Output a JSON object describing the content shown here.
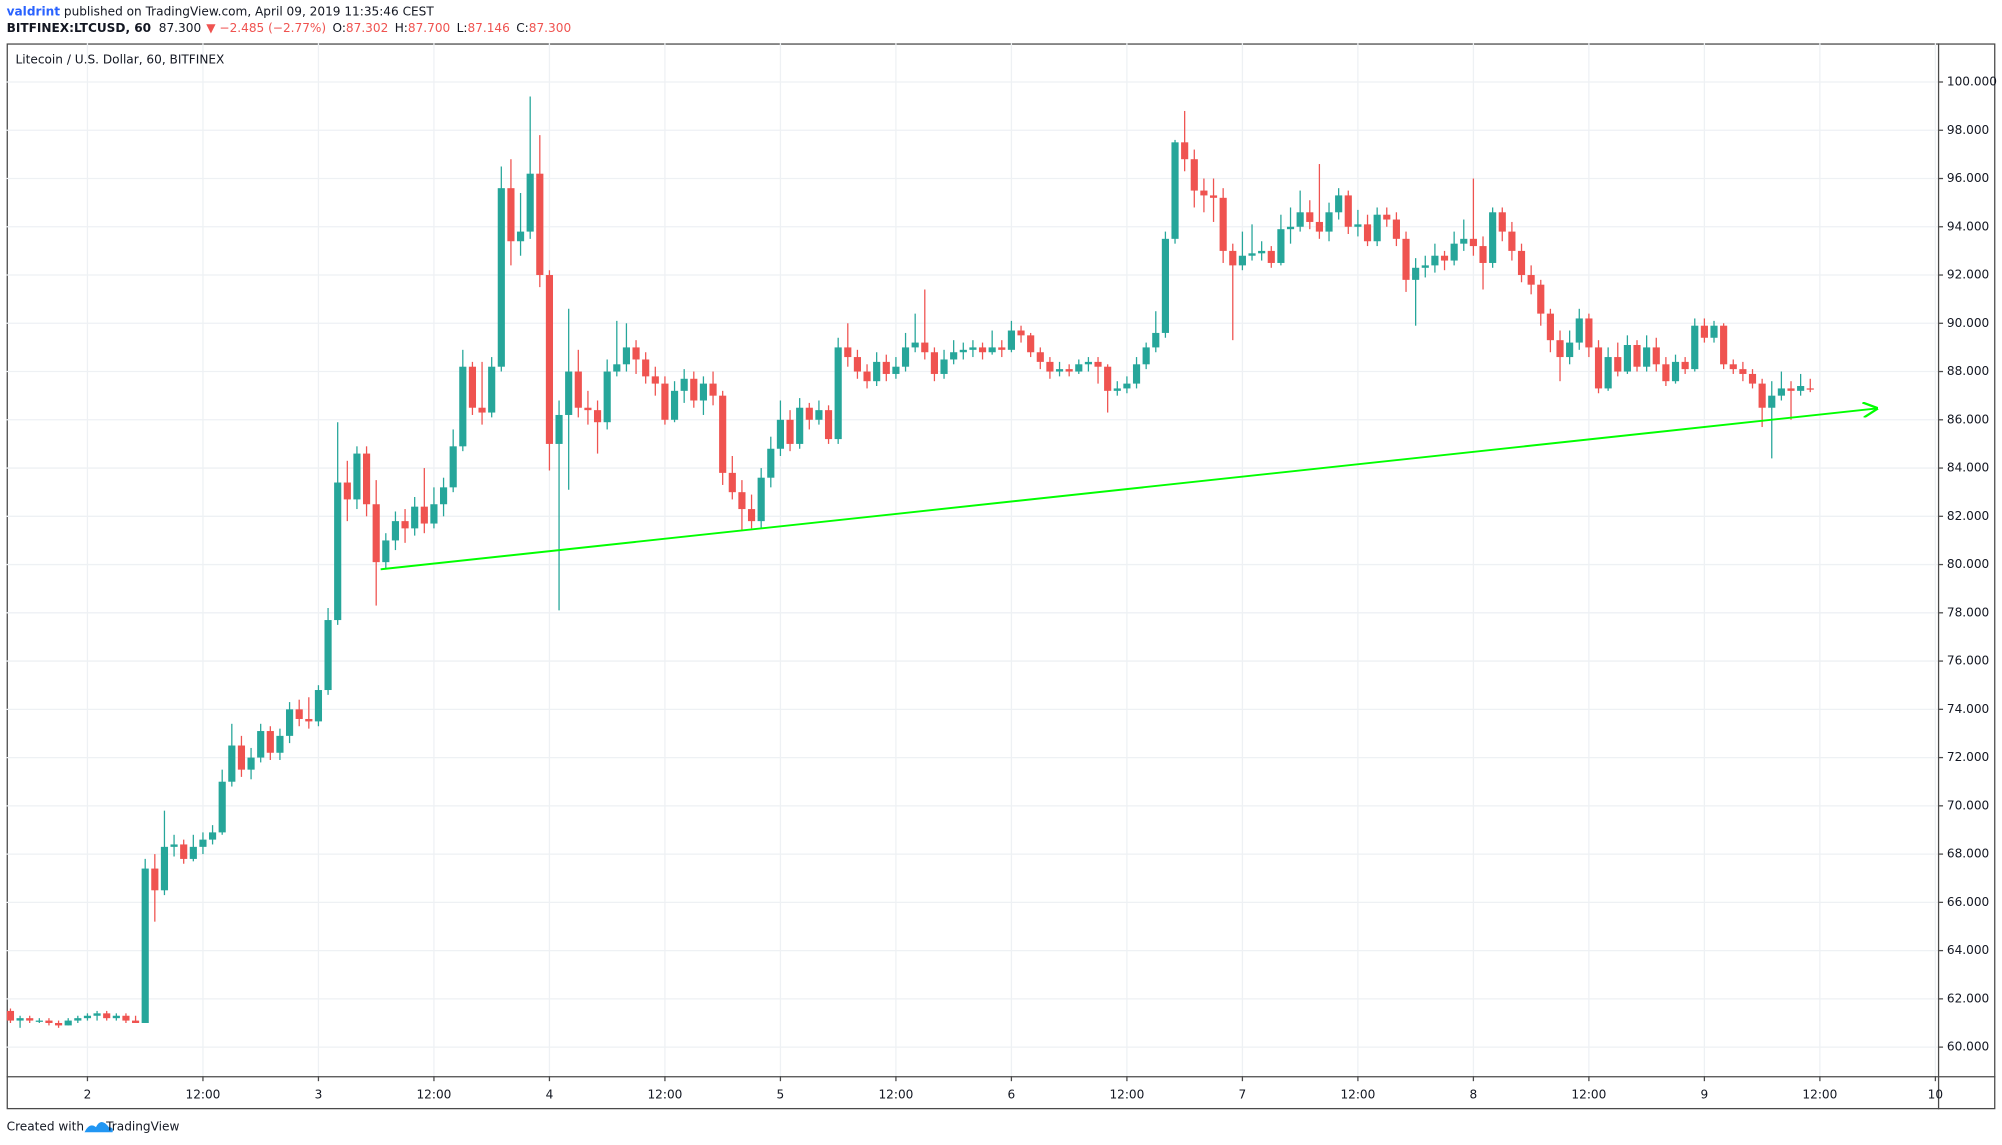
{
  "header": {
    "author": "valdrint",
    "published": " published on TradingView.com, April 09, 2019 11:35:46 CEST",
    "symbol": "BITFINEX:LTCUSD, 60",
    "last": "87.300",
    "change": "▼ −2.485 (−2.77%)",
    "ohlc": [
      {
        "label": "O:",
        "value": "87.302"
      },
      {
        "label": "H:",
        "value": "87.700"
      },
      {
        "label": "L:",
        "value": "87.146"
      },
      {
        "label": "C:",
        "value": "87.300"
      }
    ]
  },
  "chart_data": {
    "type": "candlestick",
    "title": "Litecoin / U.S. Dollar, 60, BITFINEX",
    "up_color": "#26a69a",
    "down_color": "#ef5350",
    "grid": true,
    "ylim": [
      58.8,
      101.6
    ],
    "yticks": [
      {
        "value": 60,
        "label": "60.000"
      },
      {
        "value": 62,
        "label": "62.000"
      },
      {
        "value": 64,
        "label": "64.000"
      },
      {
        "value": 66,
        "label": "66.000"
      },
      {
        "value": 68,
        "label": "68.000"
      },
      {
        "value": 70,
        "label": "70.000"
      },
      {
        "value": 72,
        "label": "72.000"
      },
      {
        "value": 74,
        "label": "74.000"
      },
      {
        "value": 76,
        "label": "76.000"
      },
      {
        "value": 78,
        "label": "78.000"
      },
      {
        "value": 80,
        "label": "80.000"
      },
      {
        "value": 82,
        "label": "82.000"
      },
      {
        "value": 84,
        "label": "84.000"
      },
      {
        "value": 86,
        "label": "86.000"
      },
      {
        "value": 88,
        "label": "88.000"
      },
      {
        "value": 90,
        "label": "90.000"
      },
      {
        "value": 92,
        "label": "92.000"
      },
      {
        "value": 94,
        "label": "94.000"
      },
      {
        "value": 96,
        "label": "96.000"
      },
      {
        "value": 98,
        "label": "98.000"
      },
      {
        "value": 100,
        "label": "100.000"
      }
    ],
    "xtick_labels": [
      "2",
      "12:00",
      "3",
      "12:00",
      "4",
      "12:00",
      "5",
      "12:00",
      "6",
      "12:00",
      "7",
      "12:00",
      "8",
      "12:00",
      "9",
      "12:00",
      "10"
    ],
    "ohlc": [
      [
        61.5,
        61.6,
        61.0,
        61.1
      ],
      [
        61.1,
        61.3,
        60.8,
        61.2
      ],
      [
        61.2,
        61.3,
        61.0,
        61.1
      ],
      [
        61.1,
        61.2,
        61.0,
        61.1
      ],
      [
        61.1,
        61.2,
        60.9,
        61.0
      ],
      [
        61.0,
        61.1,
        60.8,
        60.9
      ],
      [
        60.9,
        61.2,
        60.9,
        61.1
      ],
      [
        61.1,
        61.3,
        61.0,
        61.2
      ],
      [
        61.2,
        61.4,
        61.1,
        61.3
      ],
      [
        61.3,
        61.5,
        61.1,
        61.4
      ],
      [
        61.4,
        61.5,
        61.1,
        61.2
      ],
      [
        61.2,
        61.4,
        61.1,
        61.3
      ],
      [
        61.3,
        61.4,
        61.0,
        61.1
      ],
      [
        61.1,
        61.3,
        61.0,
        61.0
      ],
      [
        61.0,
        67.8,
        61.0,
        67.4
      ],
      [
        67.4,
        68.0,
        65.2,
        66.5
      ],
      [
        66.5,
        69.8,
        66.3,
        68.3
      ],
      [
        68.3,
        68.8,
        67.9,
        68.4
      ],
      [
        68.4,
        68.6,
        67.6,
        67.8
      ],
      [
        67.8,
        68.8,
        67.7,
        68.3
      ],
      [
        68.3,
        68.9,
        68.0,
        68.6
      ],
      [
        68.6,
        69.2,
        68.4,
        68.9
      ],
      [
        68.9,
        71.5,
        68.8,
        71.0
      ],
      [
        71.0,
        73.4,
        70.8,
        72.5
      ],
      [
        72.5,
        72.9,
        71.2,
        71.5
      ],
      [
        71.5,
        72.4,
        71.1,
        72.0
      ],
      [
        72.0,
        73.4,
        71.8,
        73.1
      ],
      [
        73.1,
        73.3,
        71.9,
        72.2
      ],
      [
        72.2,
        73.2,
        71.9,
        72.9
      ],
      [
        72.9,
        74.3,
        72.6,
        74.0
      ],
      [
        74.0,
        74.4,
        73.3,
        73.6
      ],
      [
        73.6,
        74.5,
        73.2,
        73.5
      ],
      [
        73.5,
        75.0,
        73.3,
        74.8
      ],
      [
        74.8,
        78.2,
        74.6,
        77.7
      ],
      [
        77.7,
        85.9,
        77.5,
        83.4
      ],
      [
        83.4,
        84.3,
        81.8,
        82.7
      ],
      [
        82.7,
        84.9,
        82.3,
        84.6
      ],
      [
        84.6,
        84.9,
        82.0,
        82.5
      ],
      [
        82.5,
        83.5,
        78.3,
        80.1
      ],
      [
        80.1,
        81.3,
        79.8,
        81.0
      ],
      [
        81.0,
        82.2,
        80.6,
        81.8
      ],
      [
        81.8,
        82.3,
        80.9,
        81.5
      ],
      [
        81.5,
        82.8,
        81.2,
        82.4
      ],
      [
        82.4,
        84.0,
        81.3,
        81.7
      ],
      [
        81.7,
        83.2,
        81.5,
        82.5
      ],
      [
        82.5,
        83.6,
        82.0,
        83.2
      ],
      [
        83.2,
        85.6,
        83.0,
        84.9
      ],
      [
        84.9,
        88.9,
        84.7,
        88.2
      ],
      [
        88.2,
        88.4,
        86.2,
        86.5
      ],
      [
        86.5,
        88.4,
        85.8,
        86.3
      ],
      [
        86.3,
        88.6,
        86.1,
        88.2
      ],
      [
        88.2,
        96.5,
        88.0,
        95.6
      ],
      [
        95.6,
        96.8,
        92.4,
        93.4
      ],
      [
        93.4,
        95.4,
        92.8,
        93.8
      ],
      [
        93.8,
        99.4,
        93.5,
        96.2
      ],
      [
        96.2,
        97.8,
        91.5,
        92.0
      ],
      [
        92.0,
        92.2,
        83.9,
        85.0
      ],
      [
        85.0,
        86.8,
        78.1,
        86.2
      ],
      [
        86.2,
        90.6,
        83.1,
        88.0
      ],
      [
        88.0,
        88.9,
        86.1,
        86.5
      ],
      [
        86.5,
        87.2,
        85.8,
        86.4
      ],
      [
        86.4,
        86.8,
        84.6,
        85.9
      ],
      [
        85.9,
        88.5,
        85.6,
        88.0
      ],
      [
        88.0,
        90.1,
        87.8,
        88.3
      ],
      [
        88.3,
        90.0,
        88.0,
        89.0
      ],
      [
        89.0,
        89.3,
        87.9,
        88.5
      ],
      [
        88.5,
        88.8,
        87.5,
        87.8
      ],
      [
        87.8,
        88.2,
        87.0,
        87.5
      ],
      [
        87.5,
        87.8,
        85.8,
        86.0
      ],
      [
        86.0,
        87.6,
        85.9,
        87.2
      ],
      [
        87.2,
        88.1,
        86.7,
        87.7
      ],
      [
        87.7,
        88.0,
        86.5,
        86.8
      ],
      [
        86.8,
        87.8,
        86.2,
        87.5
      ],
      [
        87.5,
        88.0,
        86.6,
        87.0
      ],
      [
        87.0,
        87.2,
        83.3,
        83.8
      ],
      [
        83.8,
        84.5,
        82.7,
        83.0
      ],
      [
        83.0,
        83.5,
        81.4,
        82.3
      ],
      [
        82.3,
        82.9,
        81.5,
        81.8
      ],
      [
        81.8,
        84.0,
        81.5,
        83.6
      ],
      [
        83.6,
        85.3,
        83.2,
        84.8
      ],
      [
        84.8,
        86.8,
        84.5,
        86.0
      ],
      [
        86.0,
        86.4,
        84.7,
        85.0
      ],
      [
        85.0,
        86.9,
        84.8,
        86.5
      ],
      [
        86.5,
        86.7,
        85.6,
        86.0
      ],
      [
        86.0,
        86.8,
        85.8,
        86.4
      ],
      [
        86.4,
        86.6,
        85.0,
        85.2
      ],
      [
        85.2,
        89.4,
        85.0,
        89.0
      ],
      [
        89.0,
        90.0,
        88.2,
        88.6
      ],
      [
        88.6,
        88.9,
        87.7,
        88.0
      ],
      [
        88.0,
        88.3,
        87.3,
        87.6
      ],
      [
        87.6,
        88.8,
        87.4,
        88.4
      ],
      [
        88.4,
        88.7,
        87.6,
        87.9
      ],
      [
        87.9,
        88.6,
        87.7,
        88.2
      ],
      [
        88.2,
        89.6,
        88.0,
        89.0
      ],
      [
        89.0,
        90.4,
        88.8,
        89.2
      ],
      [
        89.2,
        91.4,
        88.5,
        88.8
      ],
      [
        88.8,
        89.0,
        87.6,
        87.9
      ],
      [
        87.9,
        88.9,
        87.7,
        88.5
      ],
      [
        88.5,
        89.3,
        88.3,
        88.8
      ],
      [
        88.8,
        89.2,
        88.5,
        88.9
      ],
      [
        88.9,
        89.3,
        88.6,
        89.0
      ],
      [
        89.0,
        89.2,
        88.5,
        88.8
      ],
      [
        88.8,
        89.7,
        88.7,
        89.0
      ],
      [
        89.0,
        89.3,
        88.6,
        88.9
      ],
      [
        88.9,
        90.1,
        88.8,
        89.7
      ],
      [
        89.7,
        89.9,
        89.2,
        89.5
      ],
      [
        89.5,
        89.6,
        88.6,
        88.8
      ],
      [
        88.8,
        89.0,
        88.1,
        88.4
      ],
      [
        88.4,
        88.6,
        87.7,
        88.0
      ],
      [
        88.0,
        88.4,
        87.8,
        88.1
      ],
      [
        88.1,
        88.3,
        87.8,
        88.0
      ],
      [
        88.0,
        88.5,
        87.9,
        88.3
      ],
      [
        88.3,
        88.6,
        88.0,
        88.4
      ],
      [
        88.4,
        88.6,
        87.5,
        88.2
      ],
      [
        88.2,
        88.3,
        86.3,
        87.2
      ],
      [
        87.2,
        87.6,
        87.0,
        87.3
      ],
      [
        87.3,
        87.8,
        87.1,
        87.5
      ],
      [
        87.5,
        88.6,
        87.3,
        88.3
      ],
      [
        88.3,
        89.2,
        88.1,
        89.0
      ],
      [
        89.0,
        90.5,
        88.8,
        89.6
      ],
      [
        89.6,
        93.8,
        89.4,
        93.5
      ],
      [
        93.5,
        97.6,
        93.3,
        97.5
      ],
      [
        97.5,
        98.8,
        96.3,
        96.8
      ],
      [
        96.8,
        97.2,
        94.8,
        95.5
      ],
      [
        95.5,
        96.0,
        94.6,
        95.3
      ],
      [
        95.3,
        96.0,
        94.2,
        95.2
      ],
      [
        95.2,
        95.6,
        92.5,
        93.0
      ],
      [
        93.0,
        93.3,
        89.3,
        92.4
      ],
      [
        92.4,
        93.8,
        92.2,
        92.8
      ],
      [
        92.8,
        94.1,
        92.6,
        92.9
      ],
      [
        92.9,
        93.4,
        92.6,
        93.0
      ],
      [
        93.0,
        93.2,
        92.3,
        92.5
      ],
      [
        92.5,
        94.5,
        92.4,
        93.9
      ],
      [
        93.9,
        94.8,
        93.3,
        94.0
      ],
      [
        94.0,
        95.5,
        93.8,
        94.6
      ],
      [
        94.6,
        95.1,
        93.9,
        94.2
      ],
      [
        94.2,
        96.6,
        93.5,
        93.8
      ],
      [
        93.8,
        95.0,
        93.4,
        94.6
      ],
      [
        94.6,
        95.6,
        94.3,
        95.3
      ],
      [
        95.3,
        95.5,
        93.7,
        94.0
      ],
      [
        94.0,
        94.7,
        93.6,
        94.1
      ],
      [
        94.1,
        94.5,
        93.2,
        93.4
      ],
      [
        93.4,
        94.8,
        93.2,
        94.5
      ],
      [
        94.5,
        94.8,
        94.0,
        94.3
      ],
      [
        94.3,
        94.6,
        93.2,
        93.5
      ],
      [
        93.5,
        93.8,
        91.3,
        91.8
      ],
      [
        91.8,
        92.7,
        89.9,
        92.3
      ],
      [
        92.3,
        92.8,
        91.9,
        92.4
      ],
      [
        92.4,
        93.3,
        92.1,
        92.8
      ],
      [
        92.8,
        93.0,
        92.2,
        92.6
      ],
      [
        92.6,
        93.8,
        92.4,
        93.3
      ],
      [
        93.3,
        94.3,
        93.0,
        93.5
      ],
      [
        93.5,
        96.0,
        92.8,
        93.2
      ],
      [
        93.2,
        93.6,
        91.4,
        92.5
      ],
      [
        92.5,
        94.8,
        92.3,
        94.6
      ],
      [
        94.6,
        94.8,
        93.4,
        93.8
      ],
      [
        93.8,
        94.2,
        92.6,
        93.0
      ],
      [
        93.0,
        93.3,
        91.7,
        92.0
      ],
      [
        92.0,
        92.4,
        91.2,
        91.6
      ],
      [
        91.6,
        91.8,
        89.9,
        90.4
      ],
      [
        90.4,
        90.6,
        88.8,
        89.3
      ],
      [
        89.3,
        89.7,
        87.6,
        88.6
      ],
      [
        88.6,
        89.7,
        88.3,
        89.2
      ],
      [
        89.2,
        90.6,
        88.9,
        90.2
      ],
      [
        90.2,
        90.4,
        88.6,
        89.0
      ],
      [
        89.0,
        89.3,
        87.1,
        87.3
      ],
      [
        87.3,
        89.0,
        87.2,
        88.6
      ],
      [
        88.6,
        89.2,
        87.8,
        88.0
      ],
      [
        88.0,
        89.5,
        87.9,
        89.1
      ],
      [
        89.1,
        89.3,
        88.0,
        88.2
      ],
      [
        88.2,
        89.5,
        88.0,
        89.0
      ],
      [
        89.0,
        89.4,
        88.0,
        88.3
      ],
      [
        88.3,
        88.6,
        87.4,
        87.6
      ],
      [
        87.6,
        88.7,
        87.5,
        88.4
      ],
      [
        88.4,
        88.6,
        87.9,
        88.1
      ],
      [
        88.1,
        90.2,
        88.0,
        89.9
      ],
      [
        89.9,
        90.2,
        89.2,
        89.4
      ],
      [
        89.4,
        90.1,
        89.2,
        89.9
      ],
      [
        89.9,
        90.0,
        88.1,
        88.3
      ],
      [
        88.3,
        88.5,
        87.9,
        88.1
      ],
      [
        88.1,
        88.4,
        87.6,
        87.9
      ],
      [
        87.9,
        88.1,
        87.3,
        87.5
      ],
      [
        87.5,
        87.7,
        85.7,
        86.5
      ],
      [
        86.5,
        87.6,
        84.4,
        87.0
      ],
      [
        87.0,
        88.0,
        86.8,
        87.3
      ],
      [
        87.3,
        87.6,
        86.0,
        87.2
      ],
      [
        87.2,
        87.9,
        87.0,
        87.4
      ],
      [
        87.302,
        87.7,
        87.146,
        87.3
      ]
    ]
  },
  "footer": {
    "created": "Created with",
    "brand": "TradingView"
  }
}
